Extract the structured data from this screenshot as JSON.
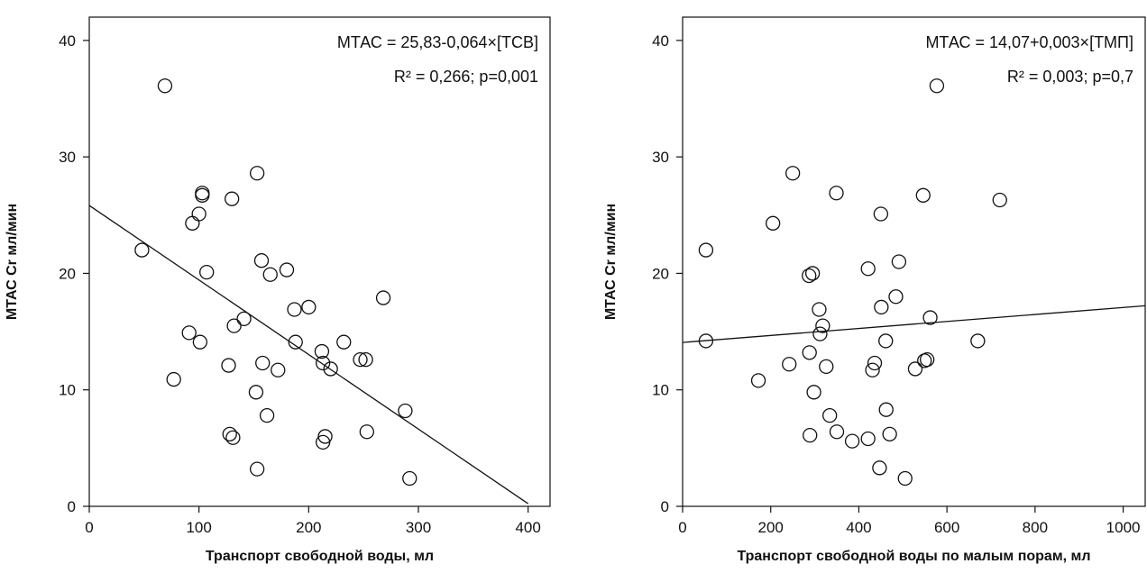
{
  "chart_data": [
    {
      "type": "scatter",
      "xlabel": "Транспорт свободной воды, мл",
      "ylabel": "МТАС Cr мл/мин",
      "xlim": [
        0,
        420
      ],
      "ylim": [
        0,
        42
      ],
      "x_ticks": [
        0,
        100,
        200,
        300,
        400
      ],
      "y_ticks": [
        0,
        10,
        20,
        30,
        40
      ],
      "x_tick_labels": [
        "0",
        "100",
        "200",
        "300",
        "400"
      ],
      "y_tick_labels": [
        "0",
        "10",
        "20",
        "30",
        "40"
      ],
      "grid": false,
      "annotations": [
        "МТАС = 25,83-0,064×[ТСВ]",
        "R² = 0,266; p=0,001"
      ],
      "regression": {
        "intercept": 25.83,
        "slope": -0.064,
        "x_range": [
          0,
          400
        ]
      },
      "points": [
        {
          "x": 48,
          "y": 22.0
        },
        {
          "x": 69,
          "y": 36.1
        },
        {
          "x": 77,
          "y": 10.9
        },
        {
          "x": 91,
          "y": 14.9
        },
        {
          "x": 94,
          "y": 24.3
        },
        {
          "x": 100,
          "y": 25.1
        },
        {
          "x": 101,
          "y": 14.1
        },
        {
          "x": 103,
          "y": 26.9
        },
        {
          "x": 103,
          "y": 26.7
        },
        {
          "x": 107,
          "y": 20.1
        },
        {
          "x": 127,
          "y": 12.1
        },
        {
          "x": 128,
          "y": 6.2
        },
        {
          "x": 130,
          "y": 26.4
        },
        {
          "x": 131,
          "y": 5.9
        },
        {
          "x": 132,
          "y": 15.5
        },
        {
          "x": 141,
          "y": 16.1
        },
        {
          "x": 152,
          "y": 9.8
        },
        {
          "x": 153,
          "y": 28.6
        },
        {
          "x": 153,
          "y": 3.2
        },
        {
          "x": 157,
          "y": 21.1
        },
        {
          "x": 158,
          "y": 12.3
        },
        {
          "x": 162,
          "y": 7.8
        },
        {
          "x": 165,
          "y": 19.9
        },
        {
          "x": 172,
          "y": 11.7
        },
        {
          "x": 180,
          "y": 20.3
        },
        {
          "x": 187,
          "y": 16.9
        },
        {
          "x": 188,
          "y": 14.1
        },
        {
          "x": 200,
          "y": 17.1
        },
        {
          "x": 212,
          "y": 13.3
        },
        {
          "x": 213,
          "y": 12.3
        },
        {
          "x": 213,
          "y": 5.5
        },
        {
          "x": 215,
          "y": 6.0
        },
        {
          "x": 220,
          "y": 11.8
        },
        {
          "x": 232,
          "y": 14.1
        },
        {
          "x": 247,
          "y": 12.6
        },
        {
          "x": 252,
          "y": 12.6
        },
        {
          "x": 253,
          "y": 6.4
        },
        {
          "x": 268,
          "y": 17.9
        },
        {
          "x": 288,
          "y": 8.2
        },
        {
          "x": 292,
          "y": 2.4
        }
      ]
    },
    {
      "type": "scatter",
      "xlabel": "Транспорт свободной воды по малым порам, мл",
      "ylabel": "МТАС Cr мл/мин",
      "xlim": [
        0,
        1050
      ],
      "ylim": [
        0,
        42
      ],
      "x_ticks": [
        0,
        200,
        400,
        600,
        800,
        1000
      ],
      "y_ticks": [
        0,
        10,
        20,
        30,
        40
      ],
      "x_tick_labels": [
        "0",
        "200",
        "400",
        "600",
        "800",
        "1000"
      ],
      "y_tick_labels": [
        "0",
        "10",
        "20",
        "30",
        "40"
      ],
      "grid": false,
      "annotations": [
        "МТАС = 14,07+0,003×[ТМП]",
        "R² = 0,003; p=0,7"
      ],
      "regression": {
        "intercept": 14.07,
        "slope": 0.003,
        "x_range": [
          0,
          1050
        ]
      },
      "points": [
        {
          "x": 53,
          "y": 22.0
        },
        {
          "x": 53,
          "y": 14.2
        },
        {
          "x": 172,
          "y": 10.8
        },
        {
          "x": 205,
          "y": 24.3
        },
        {
          "x": 242,
          "y": 12.2
        },
        {
          "x": 250,
          "y": 28.6
        },
        {
          "x": 287,
          "y": 19.8
        },
        {
          "x": 288,
          "y": 13.2
        },
        {
          "x": 289,
          "y": 6.1
        },
        {
          "x": 295,
          "y": 20.0
        },
        {
          "x": 298,
          "y": 9.8
        },
        {
          "x": 310,
          "y": 16.9
        },
        {
          "x": 312,
          "y": 14.8
        },
        {
          "x": 318,
          "y": 15.5
        },
        {
          "x": 326,
          "y": 12.0
        },
        {
          "x": 334,
          "y": 7.8
        },
        {
          "x": 349,
          "y": 26.9
        },
        {
          "x": 350,
          "y": 6.4
        },
        {
          "x": 385,
          "y": 5.6
        },
        {
          "x": 421,
          "y": 5.8
        },
        {
          "x": 421,
          "y": 20.4
        },
        {
          "x": 431,
          "y": 11.7
        },
        {
          "x": 436,
          "y": 12.3
        },
        {
          "x": 447,
          "y": 3.3
        },
        {
          "x": 450,
          "y": 25.1
        },
        {
          "x": 451,
          "y": 17.1
        },
        {
          "x": 461,
          "y": 14.2
        },
        {
          "x": 462,
          "y": 8.3
        },
        {
          "x": 470,
          "y": 6.2
        },
        {
          "x": 484,
          "y": 18.0
        },
        {
          "x": 491,
          "y": 21.0
        },
        {
          "x": 505,
          "y": 2.4
        },
        {
          "x": 528,
          "y": 11.8
        },
        {
          "x": 546,
          "y": 26.7
        },
        {
          "x": 549,
          "y": 12.5
        },
        {
          "x": 555,
          "y": 12.6
        },
        {
          "x": 562,
          "y": 16.2
        },
        {
          "x": 577,
          "y": 36.1
        },
        {
          "x": 670,
          "y": 14.2
        },
        {
          "x": 720,
          "y": 26.3
        }
      ]
    }
  ]
}
